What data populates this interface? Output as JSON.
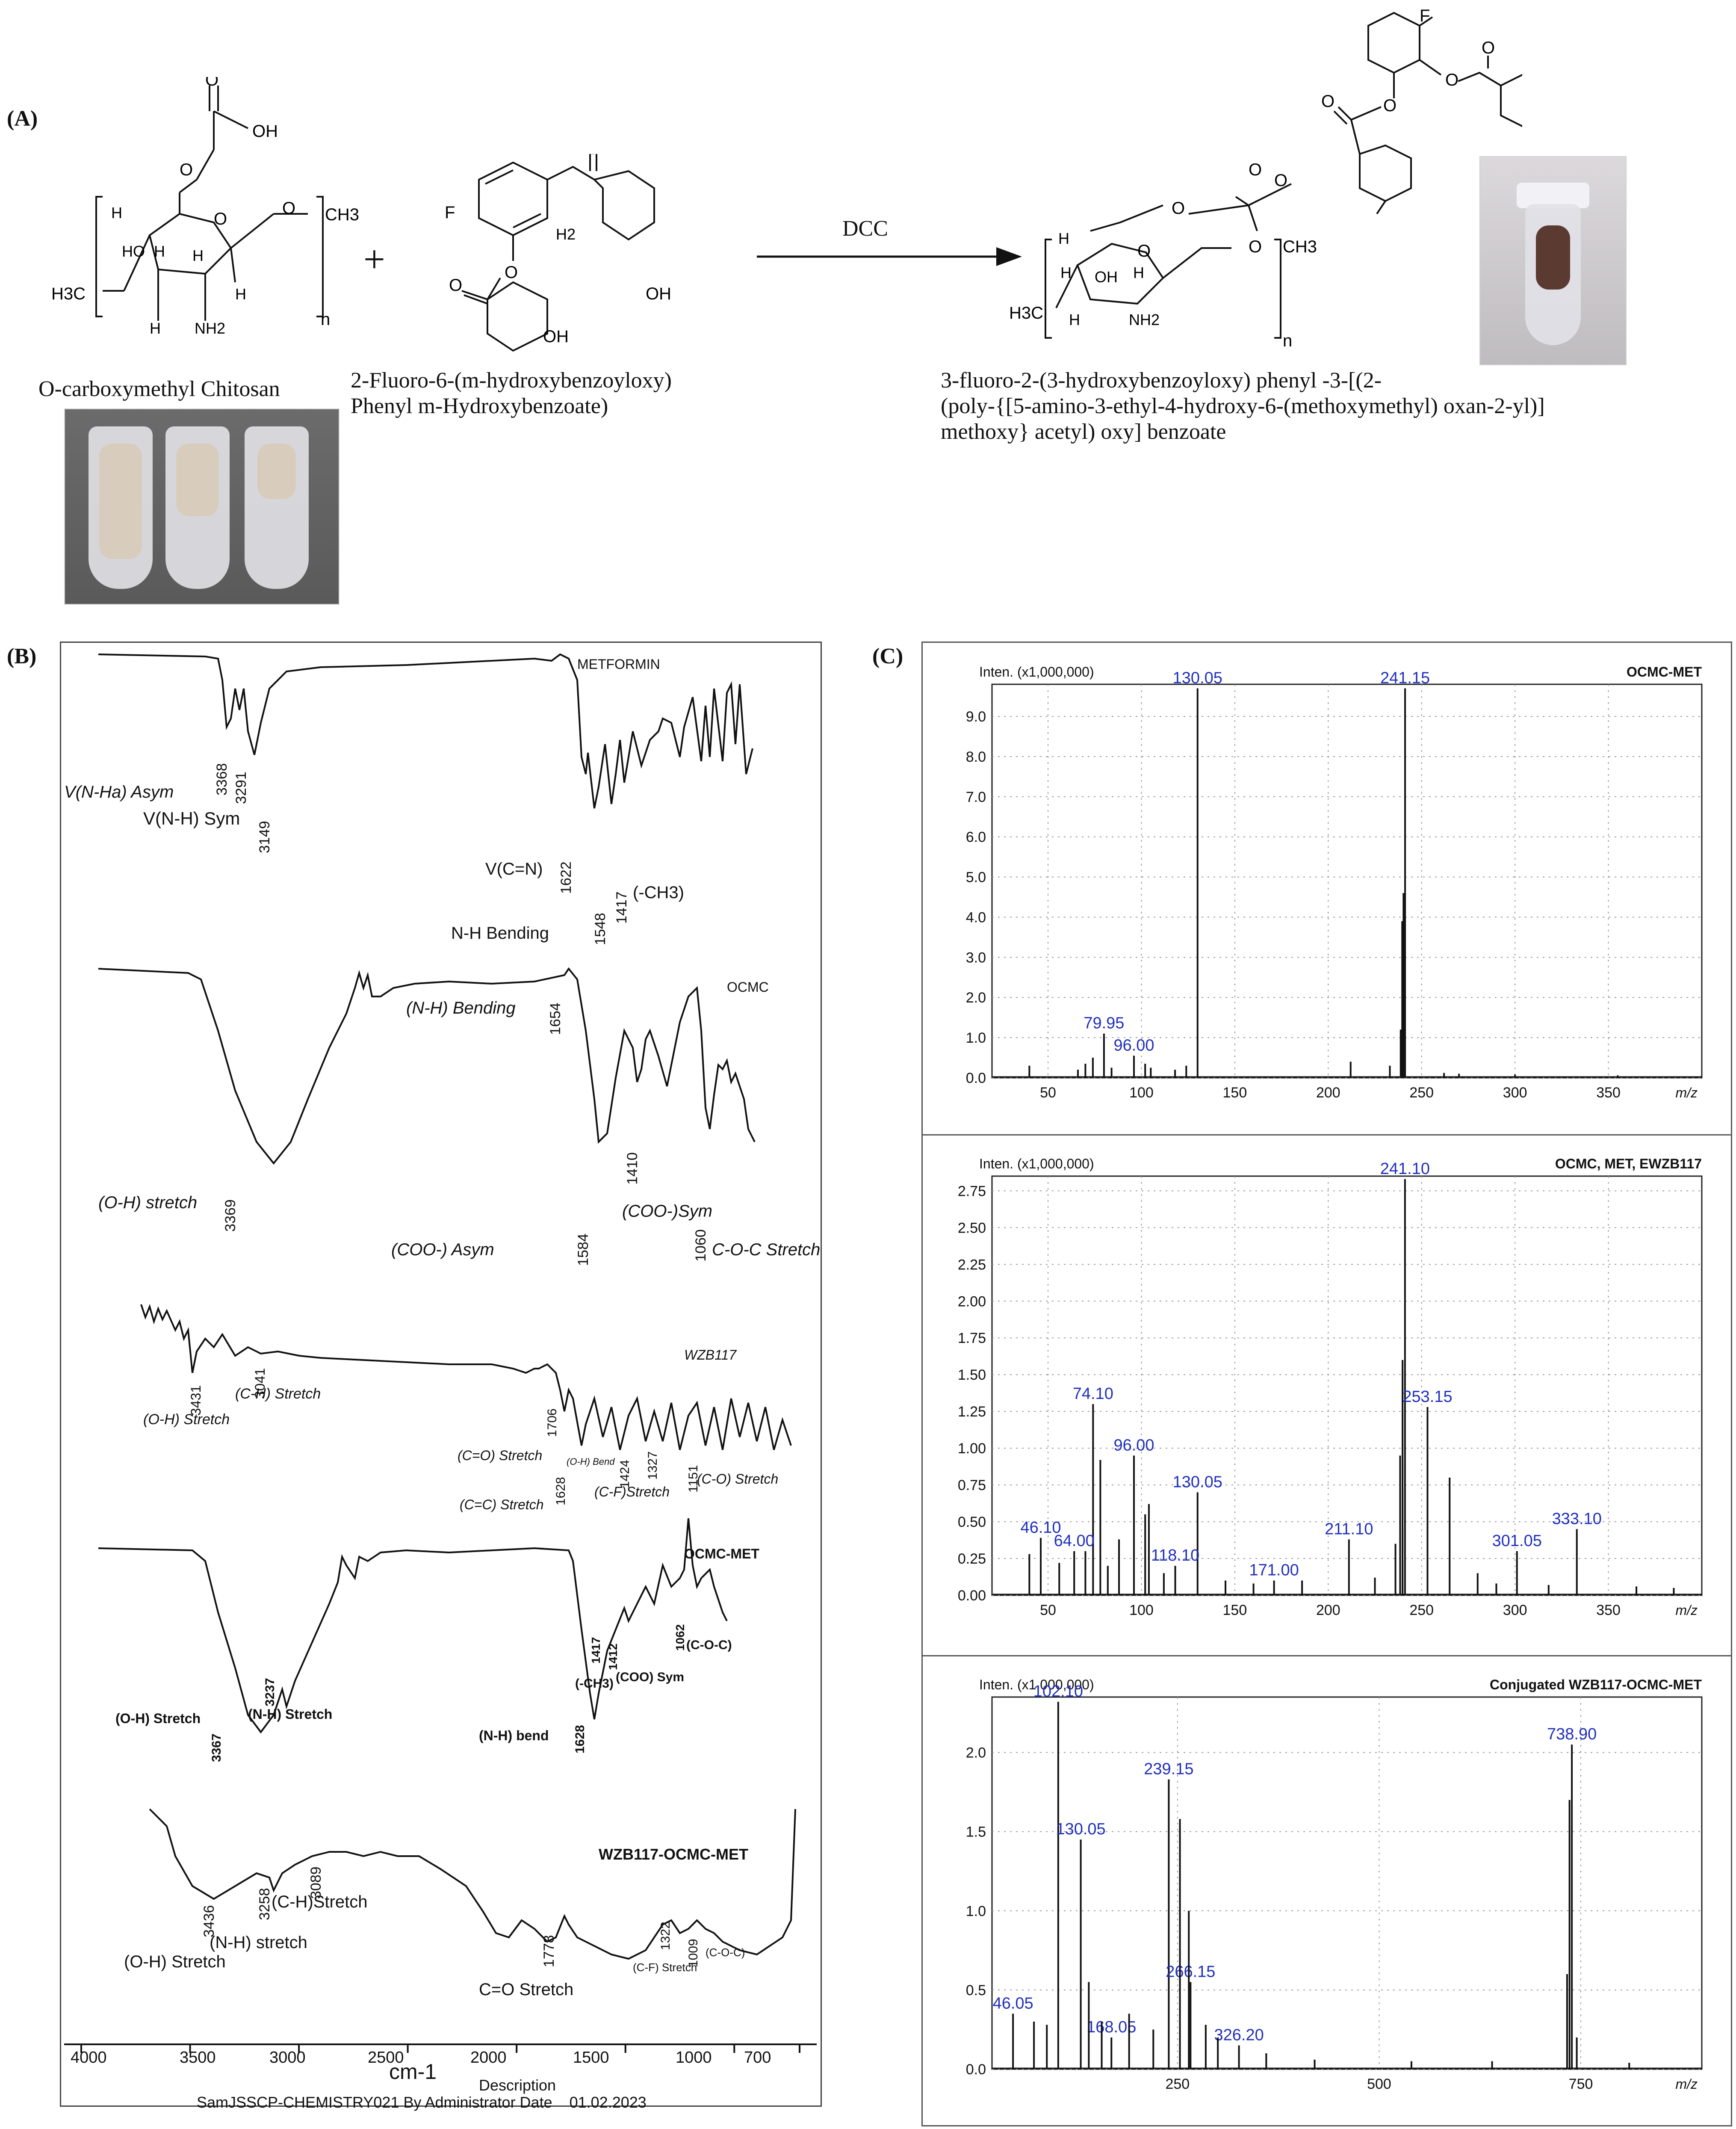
{
  "panel_a": {
    "label": "(A)",
    "reagent": "DCC",
    "ocmc_name": "O-carboxymethyl Chitosan",
    "wzb_name": "2-Fluoro-6-(m-hydroxybenzoyloxy)\nPhenyl m-Hydroxybenzoate)",
    "product_name": "3-fluoro-2-(3-hydroxybenzoyloxy) phenyl -3-[(2-\n(poly-{[5-amino-3-ethyl-4-hydroxy-6-(methoxymethyl) oxan-2-yl)]\nmethoxy} acetyl) oxy] benzoate",
    "plus": "+",
    "atoms": {
      "O": "O",
      "OH": "OH",
      "H": "H",
      "HO": "HO",
      "NH2": "NH2",
      "CH3": "CH3",
      "H3C": "H3C",
      "n": "n",
      "F": "F",
      "H2": "H2",
      "O_H": "O",
      "OH_ring": "OH"
    }
  },
  "panel_b": {
    "label": "(B)",
    "footer": "SamJSSCP-CHEMISTRY021 By Administrator Date    01.02.2023",
    "xlabel": "cm-1",
    "description": "Description",
    "xticks": [
      "4000",
      "3500",
      "3000",
      "2500",
      "2000",
      "1500",
      "1000",
      "700"
    ],
    "spectra": [
      {
        "title": "METFORMIN",
        "annotations": [
          "V(N-Ha) Asym",
          "3368",
          "3291",
          "V(N-H) Sym",
          "3149",
          "V(C=N)",
          "1622",
          "1548",
          "1417",
          "(-CH3)",
          "N-H Bending"
        ]
      },
      {
        "title": "OCMC",
        "annotations": [
          "(N-H) Bending",
          "1654",
          "(O-H) stretch",
          "3369",
          "1410",
          "(COO-)Sym",
          "(COO-) Asym",
          "1584",
          "1060",
          "C-O-C Stretch"
        ]
      },
      {
        "title": "WZB117",
        "annotations": [
          "3431",
          "3041",
          "(C-H) Stretch",
          "(O-H) Stretch",
          "1706",
          "(C=O) Stretch",
          "(O-H) Bend",
          "1628",
          "1424",
          "1327",
          "1151",
          "(C-O) Stretch",
          "(C=C) Stretch",
          "(C-F)Stretch"
        ]
      },
      {
        "title": "OCMC-MET",
        "annotations": [
          "(O-H) Stretch",
          "3367",
          "3237",
          "(N-H) Stretch",
          "(N-H) bend",
          "1628",
          "1417",
          "1412",
          "(-CH3)",
          "(COO) Sym",
          "1062",
          "(C-O-C)"
        ]
      },
      {
        "title": "WZB117-OCMC-MET",
        "annotations": [
          "3436",
          "(O-H) Stretch",
          "3258",
          "(N-H) stretch",
          "3089",
          "(C-H)Stretch",
          "1778",
          "C=O Stretch",
          "1322",
          "1009",
          "(C-F) Stretch",
          "(C-O-C)"
        ]
      }
    ]
  },
  "panel_c": {
    "label": "(C)",
    "yaxis_unit": "Inten. (x1,000,000)",
    "xaxis_unit": "m/z"
  },
  "chart_data": [
    {
      "type": "bar",
      "title": "OCMC-MET",
      "ylabel": "Inten. (x1,000,000)",
      "xlabel": "m/z",
      "xlim": [
        20,
        400
      ],
      "ylim": [
        0,
        9.8
      ],
      "xticks": [
        50,
        100,
        150,
        200,
        250,
        300,
        350
      ],
      "yticks": [
        0.0,
        1.0,
        2.0,
        3.0,
        4.0,
        5.0,
        6.0,
        7.0,
        8.0,
        9.0
      ],
      "tick_format": "1",
      "peaks": [
        {
          "x": 130.05,
          "y": 9.7,
          "label": "130.05"
        },
        {
          "x": 241.15,
          "y": 9.7,
          "label": "241.15"
        },
        {
          "x": 79.95,
          "y": 1.1,
          "label": "79.95"
        },
        {
          "x": 96.0,
          "y": 0.55,
          "label": "96.00"
        },
        {
          "x": 240.3,
          "y": 4.6,
          "label": ""
        },
        {
          "x": 239.6,
          "y": 3.9,
          "label": ""
        },
        {
          "x": 238.8,
          "y": 1.2,
          "label": ""
        },
        {
          "x": 40,
          "y": 0.3,
          "label": ""
        },
        {
          "x": 66,
          "y": 0.2,
          "label": ""
        },
        {
          "x": 70,
          "y": 0.35,
          "label": ""
        },
        {
          "x": 74,
          "y": 0.5,
          "label": ""
        },
        {
          "x": 84,
          "y": 0.25,
          "label": ""
        },
        {
          "x": 102,
          "y": 0.35,
          "label": ""
        },
        {
          "x": 105,
          "y": 0.25,
          "label": ""
        },
        {
          "x": 118,
          "y": 0.2,
          "label": ""
        },
        {
          "x": 124,
          "y": 0.3,
          "label": ""
        },
        {
          "x": 212,
          "y": 0.4,
          "label": ""
        },
        {
          "x": 233,
          "y": 0.3,
          "label": ""
        },
        {
          "x": 262,
          "y": 0.12,
          "label": ""
        },
        {
          "x": 270,
          "y": 0.1,
          "label": ""
        },
        {
          "x": 300,
          "y": 0.08,
          "label": ""
        },
        {
          "x": 355,
          "y": 0.06,
          "label": ""
        }
      ]
    },
    {
      "type": "bar",
      "title": "OCMC, MET, EWZB117",
      "ylabel": "Inten. (x1,000,000)",
      "xlabel": "m/z",
      "xlim": [
        20,
        400
      ],
      "ylim": [
        0,
        2.85
      ],
      "xticks": [
        50,
        100,
        150,
        200,
        250,
        300,
        350
      ],
      "yticks": [
        0.0,
        0.25,
        0.5,
        0.75,
        1.0,
        1.25,
        1.5,
        1.75,
        2.0,
        2.25,
        2.5,
        2.75
      ],
      "tick_format": "2",
      "peaks": [
        {
          "x": 241.1,
          "y": 2.83,
          "label": "241.10"
        },
        {
          "x": 74.1,
          "y": 1.3,
          "label": "74.10"
        },
        {
          "x": 253.15,
          "y": 1.28,
          "label": "253.15"
        },
        {
          "x": 96.0,
          "y": 0.95,
          "label": "96.00"
        },
        {
          "x": 130.05,
          "y": 0.7,
          "label": "130.05"
        },
        {
          "x": 46.1,
          "y": 0.39,
          "label": "46.10"
        },
        {
          "x": 64.0,
          "y": 0.3,
          "label": "64.00"
        },
        {
          "x": 118.1,
          "y": 0.2,
          "label": "118.10"
        },
        {
          "x": 171.0,
          "y": 0.1,
          "label": "171.00"
        },
        {
          "x": 211.1,
          "y": 0.38,
          "label": "211.10"
        },
        {
          "x": 301.05,
          "y": 0.3,
          "label": "301.05"
        },
        {
          "x": 333.1,
          "y": 0.45,
          "label": "333.10"
        },
        {
          "x": 239.8,
          "y": 1.6,
          "label": ""
        },
        {
          "x": 238.5,
          "y": 0.95,
          "label": ""
        },
        {
          "x": 78,
          "y": 0.92,
          "label": ""
        },
        {
          "x": 104,
          "y": 0.62,
          "label": ""
        },
        {
          "x": 102,
          "y": 0.55,
          "label": ""
        },
        {
          "x": 88,
          "y": 0.38,
          "label": ""
        },
        {
          "x": 265,
          "y": 0.8,
          "label": ""
        },
        {
          "x": 236,
          "y": 0.35,
          "label": ""
        },
        {
          "x": 40,
          "y": 0.28,
          "label": ""
        },
        {
          "x": 56,
          "y": 0.22,
          "label": ""
        },
        {
          "x": 70,
          "y": 0.3,
          "label": ""
        },
        {
          "x": 82,
          "y": 0.2,
          "label": ""
        },
        {
          "x": 112,
          "y": 0.15,
          "label": ""
        },
        {
          "x": 145,
          "y": 0.1,
          "label": ""
        },
        {
          "x": 160,
          "y": 0.08,
          "label": ""
        },
        {
          "x": 186,
          "y": 0.1,
          "label": ""
        },
        {
          "x": 225,
          "y": 0.12,
          "label": ""
        },
        {
          "x": 280,
          "y": 0.15,
          "label": ""
        },
        {
          "x": 290,
          "y": 0.08,
          "label": ""
        },
        {
          "x": 318,
          "y": 0.07,
          "label": ""
        },
        {
          "x": 365,
          "y": 0.06,
          "label": ""
        },
        {
          "x": 385,
          "y": 0.05,
          "label": ""
        }
      ]
    },
    {
      "type": "bar",
      "title": "Conjugated WZB117-OCMC-MET",
      "ylabel": "Inten. (x1,000,000)",
      "xlabel": "m/z",
      "xlim": [
        20,
        900
      ],
      "ylim": [
        0,
        2.35
      ],
      "xticks": [
        250,
        500,
        750
      ],
      "yticks": [
        0.0,
        0.5,
        1.0,
        1.5,
        2.0
      ],
      "tick_format": "1",
      "peaks": [
        {
          "x": 102.1,
          "y": 2.32,
          "label": "102.10"
        },
        {
          "x": 239.15,
          "y": 1.83,
          "label": "239.15"
        },
        {
          "x": 130.05,
          "y": 1.45,
          "label": "130.05"
        },
        {
          "x": 738.9,
          "y": 2.05,
          "label": "738.90"
        },
        {
          "x": 266.15,
          "y": 0.55,
          "label": "266.15"
        },
        {
          "x": 168.05,
          "y": 0.2,
          "label": "168.05"
        },
        {
          "x": 46.05,
          "y": 0.35,
          "label": "46.05"
        },
        {
          "x": 326.2,
          "y": 0.15,
          "label": "326.20"
        },
        {
          "x": 253,
          "y": 1.58,
          "label": ""
        },
        {
          "x": 264,
          "y": 1.0,
          "label": ""
        },
        {
          "x": 736,
          "y": 1.7,
          "label": ""
        },
        {
          "x": 733,
          "y": 0.6,
          "label": ""
        },
        {
          "x": 745,
          "y": 0.2,
          "label": ""
        },
        {
          "x": 72,
          "y": 0.3,
          "label": ""
        },
        {
          "x": 88,
          "y": 0.28,
          "label": ""
        },
        {
          "x": 140,
          "y": 0.55,
          "label": ""
        },
        {
          "x": 156,
          "y": 0.3,
          "label": ""
        },
        {
          "x": 190,
          "y": 0.35,
          "label": ""
        },
        {
          "x": 220,
          "y": 0.25,
          "label": ""
        },
        {
          "x": 285,
          "y": 0.28,
          "label": ""
        },
        {
          "x": 300,
          "y": 0.2,
          "label": ""
        },
        {
          "x": 360,
          "y": 0.1,
          "label": ""
        },
        {
          "x": 420,
          "y": 0.06,
          "label": ""
        },
        {
          "x": 540,
          "y": 0.05,
          "label": ""
        },
        {
          "x": 640,
          "y": 0.05,
          "label": ""
        },
        {
          "x": 810,
          "y": 0.04,
          "label": ""
        }
      ]
    }
  ]
}
